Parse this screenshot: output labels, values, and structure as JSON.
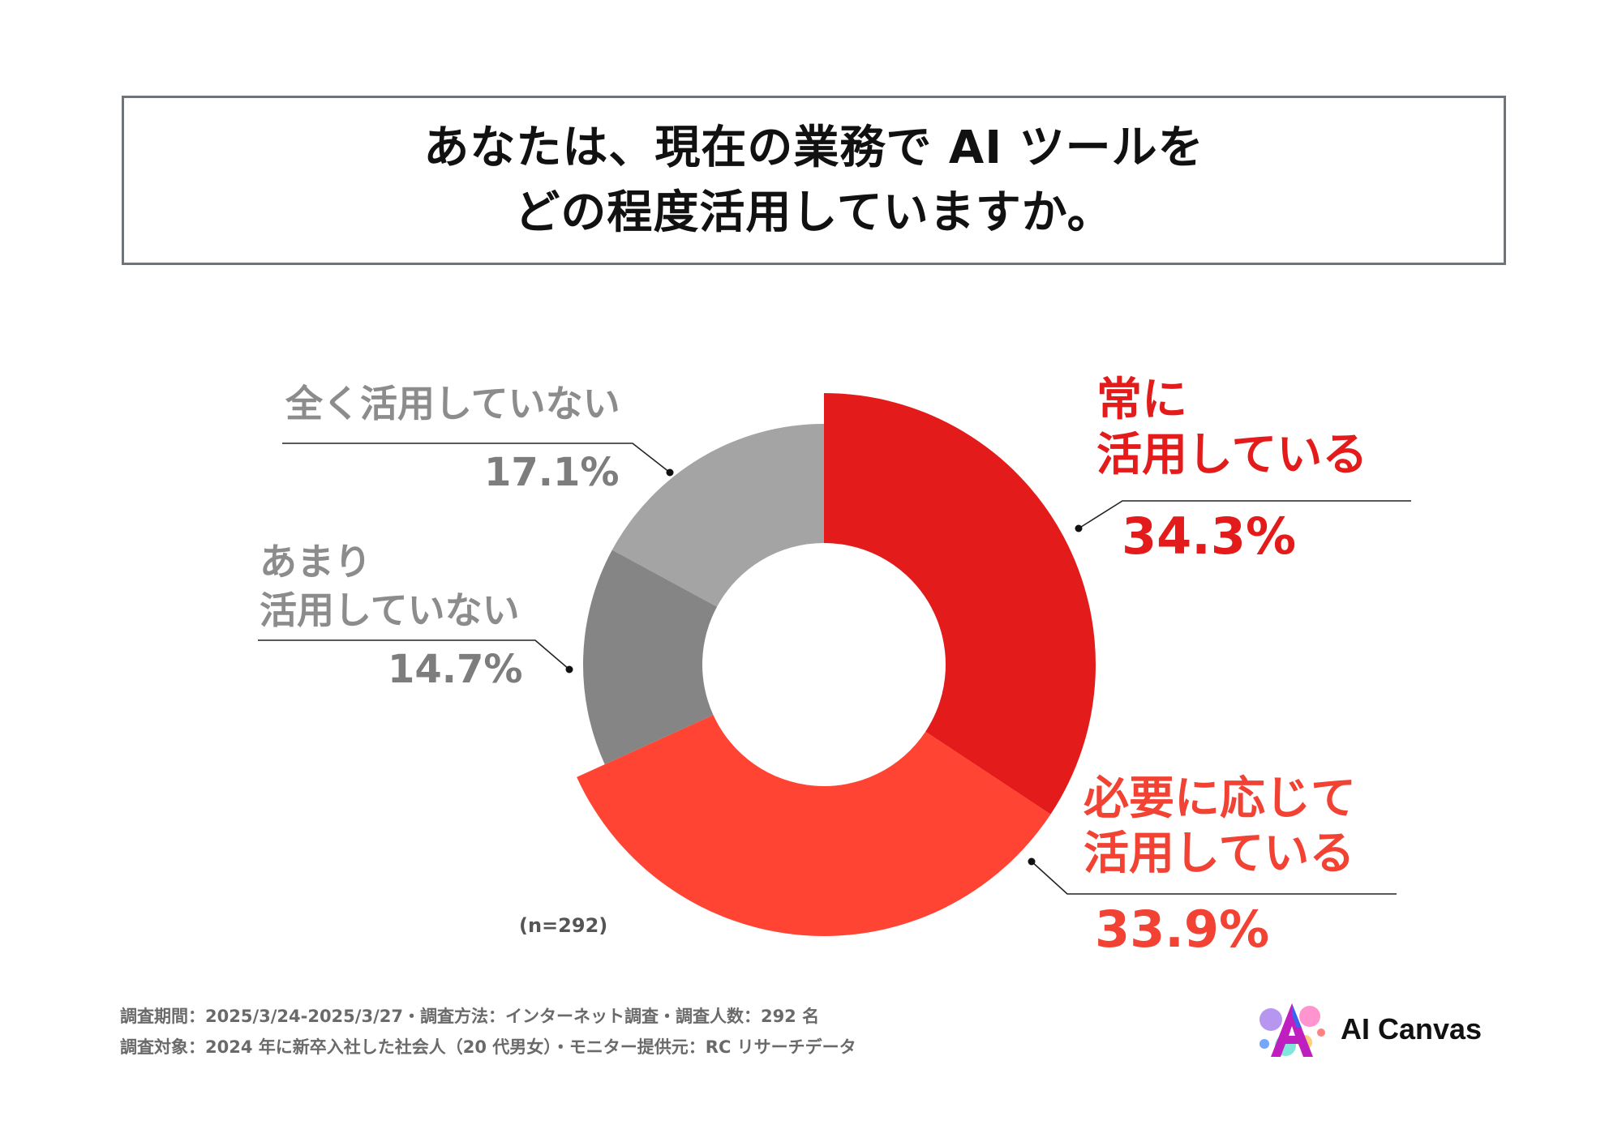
{
  "title": {
    "line1": "あなたは、現在の業務で AI ツールを",
    "line2": "どの程度活用していますか。"
  },
  "chart_data": {
    "type": "pie",
    "style": "donut",
    "title": "あなたは、現在の業務で AI ツールをどの程度活用していますか。",
    "categories": [
      "常に活用している",
      "必要に応じて活用している",
      "あまり活用していない",
      "全く活用していない"
    ],
    "values": [
      34.3,
      33.9,
      14.7,
      17.1
    ],
    "unit": "%",
    "n": 292,
    "colors": [
      "#e31b1b",
      "#ff4433",
      "#858585",
      "#a4a4a4"
    ],
    "labels": [
      {
        "name_lines": [
          "常に",
          "活用している"
        ],
        "pct": "34.3%",
        "color": "#e31b1b"
      },
      {
        "name_lines": [
          "必要に応じて",
          "活用している"
        ],
        "pct": "33.9%",
        "color": "#f24234"
      },
      {
        "name_lines": [
          "あまり",
          "活用していない"
        ],
        "pct": "14.7%",
        "color": "#8c8c8c"
      },
      {
        "name_lines": [
          "全く活用していない"
        ],
        "pct": "17.1%",
        "color": "#8c8c8c"
      }
    ]
  },
  "sample_label": "(n=292)",
  "footnotes": [
    "調査期間：2025/3/24-2025/3/27・調査方法：インターネット調査・調査人数：292 名",
    "調査対象：2024 年に新卒入社した社会人（20 代男女）・モニター提供元：RC リサーチデータ"
  ],
  "logo": {
    "text": "AI Canvas",
    "icon": "ai-canvas-logo-icon"
  }
}
